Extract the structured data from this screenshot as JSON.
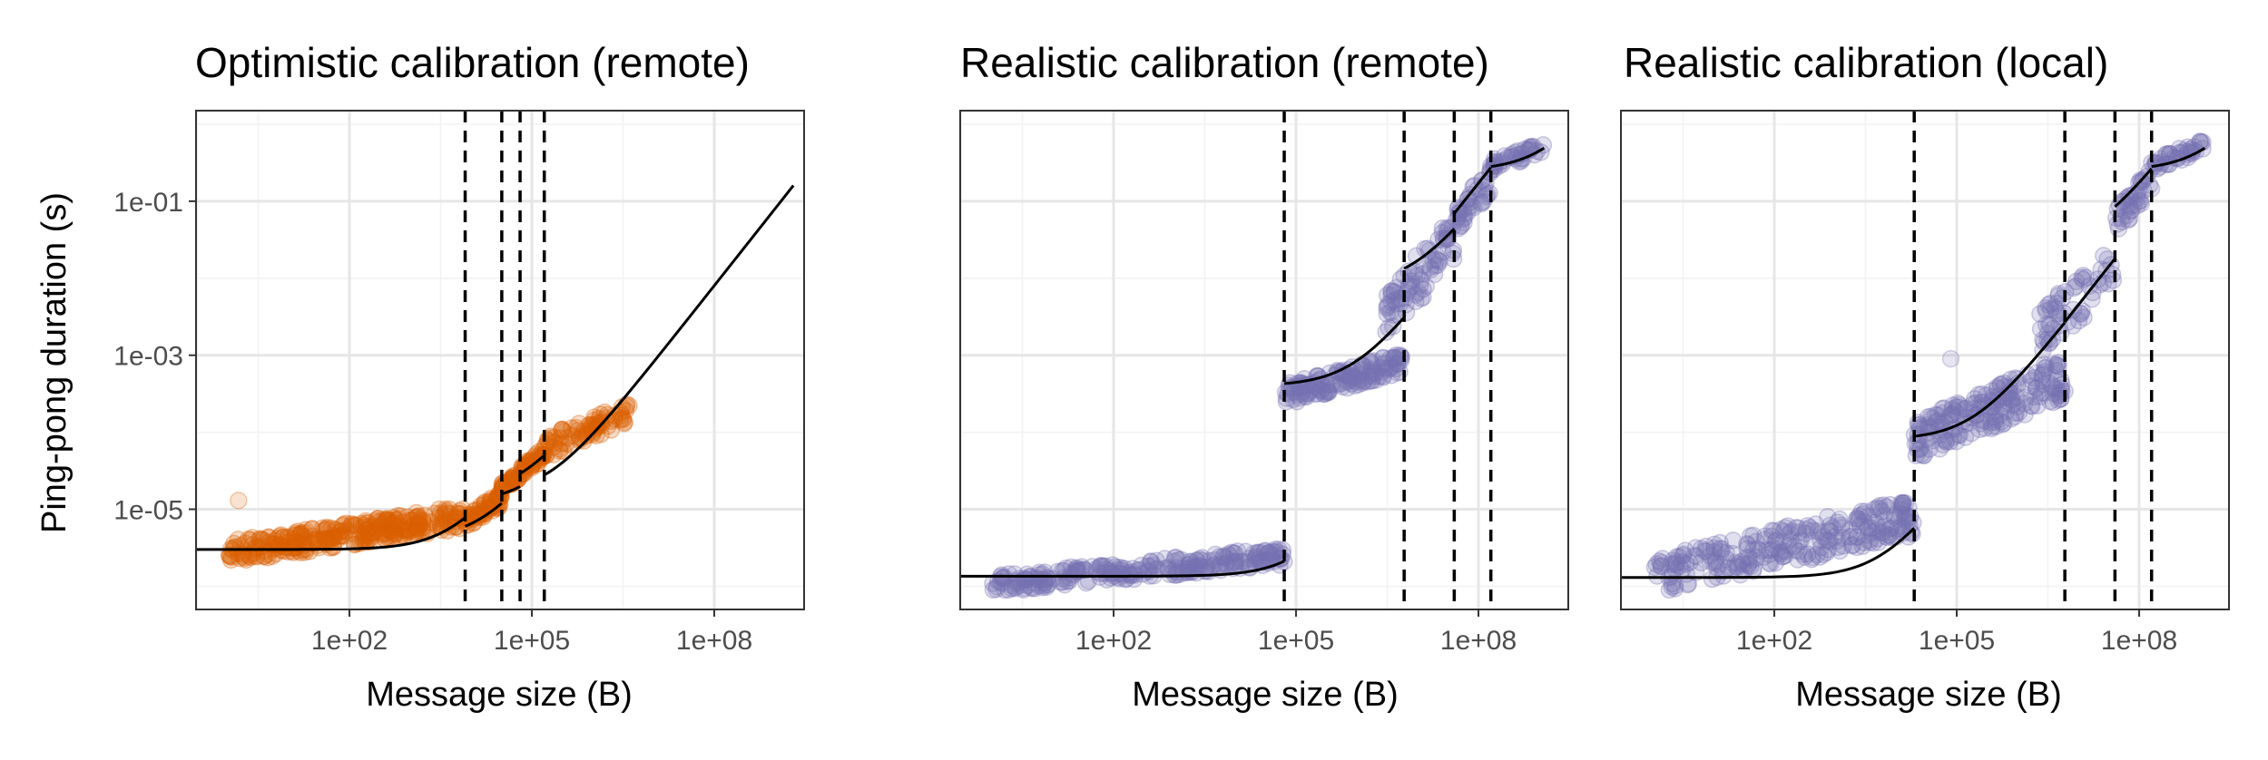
{
  "figure": {
    "ylabel": "Ping-pong duration (s)",
    "xlabel": "Message size (B)"
  },
  "colors": {
    "optimistic_points": "#d95f02",
    "realistic_points": "#7570b3",
    "fit_line": "#000000",
    "breakpoints": "#000000",
    "panel_border": "#333333",
    "grid": "#ebebeb"
  },
  "chart_data": [
    {
      "type": "scatter",
      "title": "Optimistic calibration (remote)",
      "xlabel": "Message size (B)",
      "ylabel": "Ping-pong duration (s)",
      "x_scale": "log10",
      "y_scale": "log10",
      "xlim": [
        0.3,
        3000000000.0
      ],
      "ylim": [
        5e-07,
        1.5
      ],
      "x_ticks": [
        {
          "value": 100,
          "label": "1e+02"
        },
        {
          "value": 100000,
          "label": "1e+05"
        },
        {
          "value": 100000000,
          "label": "1e+08"
        }
      ],
      "y_ticks": [
        {
          "value": 1e-05,
          "label": "1e-05"
        },
        {
          "value": 0.001,
          "label": "1e-03"
        },
        {
          "value": 0.1,
          "label": "1e-01"
        }
      ],
      "grid": true,
      "breakpoints": [
        8000,
        32000,
        64000,
        160000
      ],
      "point_color": "#d95f02",
      "points": [
        {
          "x_range": [
            1,
            8000
          ],
          "y_range": [
            2.2e-06,
            1e-05
          ],
          "n": 300
        },
        {
          "x_range": [
            8000,
            32000
          ],
          "y_range": [
            6e-06,
            1.6e-05
          ],
          "n": 60
        },
        {
          "x_range": [
            32000,
            64000
          ],
          "y_range": [
            1.8e-05,
            3e-05
          ],
          "n": 30
        },
        {
          "x_range": [
            64000,
            160000
          ],
          "y_range": [
            2.8e-05,
            6e-05
          ],
          "n": 40
        },
        {
          "x_range": [
            160000,
            4000000
          ],
          "y_range": [
            5e-05,
            0.00023
          ],
          "n": 80
        }
      ],
      "outliers": [
        {
          "x": 1.5,
          "y": 1.3e-05
        }
      ],
      "fit": [
        {
          "x_range": [
            0.3,
            8000
          ],
          "intercept": 3e-06,
          "slope": 6e-10
        },
        {
          "x_range": [
            8000,
            32000
          ],
          "intercept": 4e-06,
          "slope": 2.5e-10
        },
        {
          "x_range": [
            32000,
            64000
          ],
          "intercept": 1.2e-05,
          "slope": 1.2e-10
        },
        {
          "x_range": [
            64000,
            160000
          ],
          "intercept": 1.5e-05,
          "slope": 2.2e-10
        },
        {
          "x_range": [
            160000,
            2000000000.0
          ],
          "intercept": 1.5e-05,
          "slope": 8e-11
        }
      ]
    },
    {
      "type": "scatter",
      "title": "Realistic calibration (remote)",
      "xlabel": "Message size (B)",
      "ylabel": "",
      "x_scale": "log10",
      "y_scale": "log10",
      "xlim": [
        0.3,
        3000000000.0
      ],
      "ylim": [
        5e-07,
        1.5
      ],
      "x_ticks": [
        {
          "value": 100,
          "label": "1e+02"
        },
        {
          "value": 100000,
          "label": "1e+05"
        },
        {
          "value": 100000000,
          "label": "1e+08"
        }
      ],
      "y_ticks": [],
      "grid": true,
      "breakpoints": [
        64000,
        6000000,
        40000000,
        160000000
      ],
      "point_color": "#7570b3",
      "points": [
        {
          "x_range": [
            1,
            64000
          ],
          "y_range": [
            9e-07,
            3e-06
          ],
          "n": 260
        },
        {
          "x_range": [
            64000,
            6000000
          ],
          "y_range": [
            0.00025,
            0.001
          ],
          "n": 150
        },
        {
          "x_range": [
            3000000,
            40000000
          ],
          "y_range": [
            0.002,
            0.055
          ],
          "n": 80
        },
        {
          "x_range": [
            40000000,
            160000000
          ],
          "y_range": [
            0.04,
            0.25
          ],
          "n": 40
        },
        {
          "x_range": [
            160000000,
            1200000000.0
          ],
          "y_range": [
            0.26,
            0.55
          ],
          "n": 40
        }
      ],
      "outliers": [],
      "fit": [
        {
          "x_range": [
            0.3,
            64000
          ],
          "intercept": 1.35e-06,
          "slope": 1.2e-11
        },
        {
          "x_range": [
            64000,
            6000000
          ],
          "intercept": 0.0004,
          "slope": 4.5e-10
        },
        {
          "x_range": [
            6000000,
            40000000
          ],
          "intercept": 0.008,
          "slope": 9e-10
        },
        {
          "x_range": [
            40000000,
            160000000
          ],
          "intercept": 0.0015,
          "slope": 1.7e-09
        },
        {
          "x_range": [
            160000000,
            1200000000.0
          ],
          "intercept": 0.25,
          "slope": 2e-10
        }
      ]
    },
    {
      "type": "scatter",
      "title": "Realistic calibration (local)",
      "xlabel": "Message size (B)",
      "ylabel": "",
      "x_scale": "log10",
      "y_scale": "log10",
      "xlim": [
        0.3,
        3000000000.0
      ],
      "ylim": [
        5e-07,
        1.5
      ],
      "x_ticks": [
        {
          "value": 100,
          "label": "1e+02"
        },
        {
          "value": 100000,
          "label": "1e+05"
        },
        {
          "value": 100000000,
          "label": "1e+08"
        }
      ],
      "y_ticks": [],
      "grid": true,
      "breakpoints": [
        20000,
        6000000,
        40000000,
        160000000
      ],
      "point_color": "#7570b3",
      "points": [
        {
          "x_range": [
            1,
            20000
          ],
          "y_range": [
            9e-07,
            1.2e-05
          ],
          "n": 260
        },
        {
          "x_range": [
            20000,
            6000000
          ],
          "y_range": [
            5e-05,
            0.0008
          ],
          "n": 200
        },
        {
          "x_range": [
            2000000,
            40000000
          ],
          "y_range": [
            0.001,
            0.025
          ],
          "n": 60
        },
        {
          "x_range": [
            40000000,
            160000000
          ],
          "y_range": [
            0.04,
            0.25
          ],
          "n": 40
        },
        {
          "x_range": [
            160000000,
            1200000000.0
          ],
          "y_range": [
            0.26,
            0.6
          ],
          "n": 40
        }
      ],
      "outliers": [
        {
          "x": 80000,
          "y": 0.0009
        }
      ],
      "fit": [
        {
          "x_range": [
            0.3,
            20000
          ],
          "intercept": 1.3e-06,
          "slope": 2.2e-10
        },
        {
          "x_range": [
            20000,
            6000000
          ],
          "intercept": 8e-05,
          "slope": 4.3e-10
        },
        {
          "x_range": [
            6000000,
            40000000
          ],
          "intercept": 0,
          "slope": 4.5e-10
        },
        {
          "x_range": [
            40000000,
            160000000
          ],
          "intercept": 0.025,
          "slope": 1.5e-09
        },
        {
          "x_range": [
            160000000,
            1200000000.0
          ],
          "intercept": 0.25,
          "slope": 2e-10
        }
      ]
    }
  ]
}
